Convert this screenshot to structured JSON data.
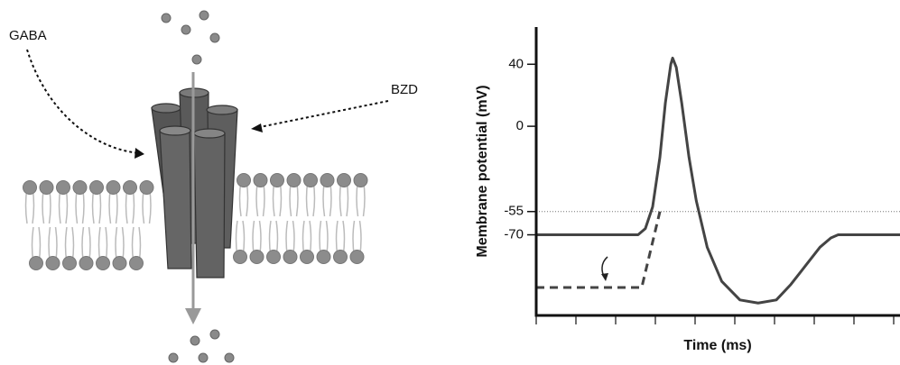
{
  "diagram": {
    "labels": {
      "gaba": "GABA",
      "bzd": "BZD"
    }
  },
  "chart_data": {
    "type": "line",
    "y_label": "Membrane potential (mV)",
    "x_label": "Time (ms)",
    "xlim": [
      0,
      100
    ],
    "ylim": [
      -122,
      64
    ],
    "yticks": [
      40,
      0,
      -55,
      -70
    ],
    "threshold": -55,
    "series": [
      {
        "color": "#444444",
        "style": "solid",
        "x": [
          0,
          28,
          30,
          32,
          34,
          35.5,
          37,
          37.5,
          38.5,
          40,
          42,
          44,
          47,
          51,
          56,
          61,
          66,
          70,
          74,
          78,
          81,
          83,
          100
        ],
        "values": [
          -70,
          -70,
          -66,
          -52,
          -20,
          15,
          40,
          44,
          38,
          15,
          -20,
          -48,
          -78,
          -100,
          -112,
          -114,
          -112,
          -102,
          -90,
          -78,
          -72,
          -70,
          -70
        ]
      },
      {
        "color": "#444444",
        "style": "dashed",
        "x": [
          0,
          29,
          34
        ],
        "values": [
          -104,
          -104,
          -55
        ]
      }
    ]
  }
}
